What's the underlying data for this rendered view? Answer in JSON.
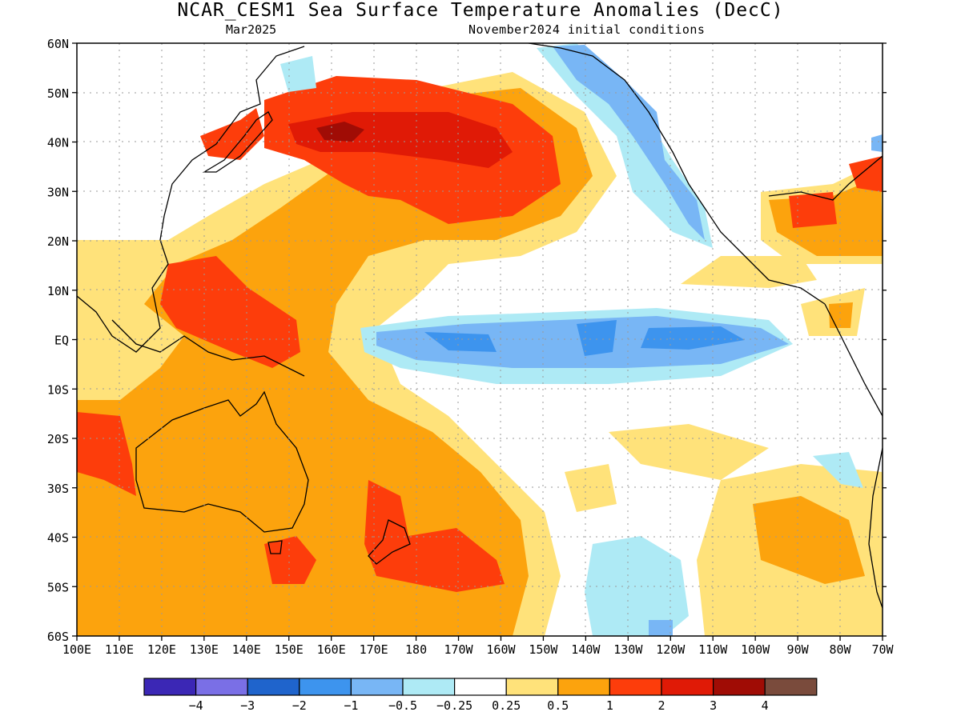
{
  "header": {
    "title": "NCAR_CESM1 Sea Surface Temperature Anomalies (DecC)",
    "valid_month": "Mar2025",
    "initial_conditions": "November2024 initial conditions"
  },
  "map": {
    "lat_labels": [
      "60N",
      "50N",
      "40N",
      "30N",
      "20N",
      "10N",
      "EQ",
      "10S",
      "20S",
      "30S",
      "40S",
      "50S",
      "60S"
    ],
    "lon_labels": [
      "100E",
      "110E",
      "120E",
      "130E",
      "140E",
      "150E",
      "160E",
      "170E",
      "180",
      "170W",
      "160W",
      "150W",
      "140W",
      "130W",
      "120W",
      "110W",
      "100W",
      "90W",
      "80W",
      "70W"
    ],
    "colors": {
      "neg4": "#3b27b5",
      "neg3": "#7a6fe6",
      "neg2": "#1f64cc",
      "neg1": "#3d94ee",
      "neg05": "#78b6f5",
      "neg025": "#aeeaf5",
      "neutral": "#ffffff",
      "pos025": "#ffe27a",
      "pos05": "#fca30d",
      "pos1": "#fd3d0b",
      "pos2": "#e01a06",
      "pos3": "#a00c05",
      "pos4": "#7a4b3c"
    }
  },
  "legend": {
    "labels": [
      "−4",
      "−3",
      "−2",
      "−1",
      "−0.5",
      "−0.25",
      "0.25",
      "0.5",
      "1",
      "2",
      "3",
      "4"
    ],
    "swatches": [
      "#3b27b5",
      "#7a6fe6",
      "#1f64cc",
      "#3d94ee",
      "#78b6f5",
      "#aeeaf5",
      "#ffffff",
      "#ffe27a",
      "#fca30d",
      "#fd3d0b",
      "#e01a06",
      "#a00c05",
      "#7a4b3c"
    ]
  }
}
